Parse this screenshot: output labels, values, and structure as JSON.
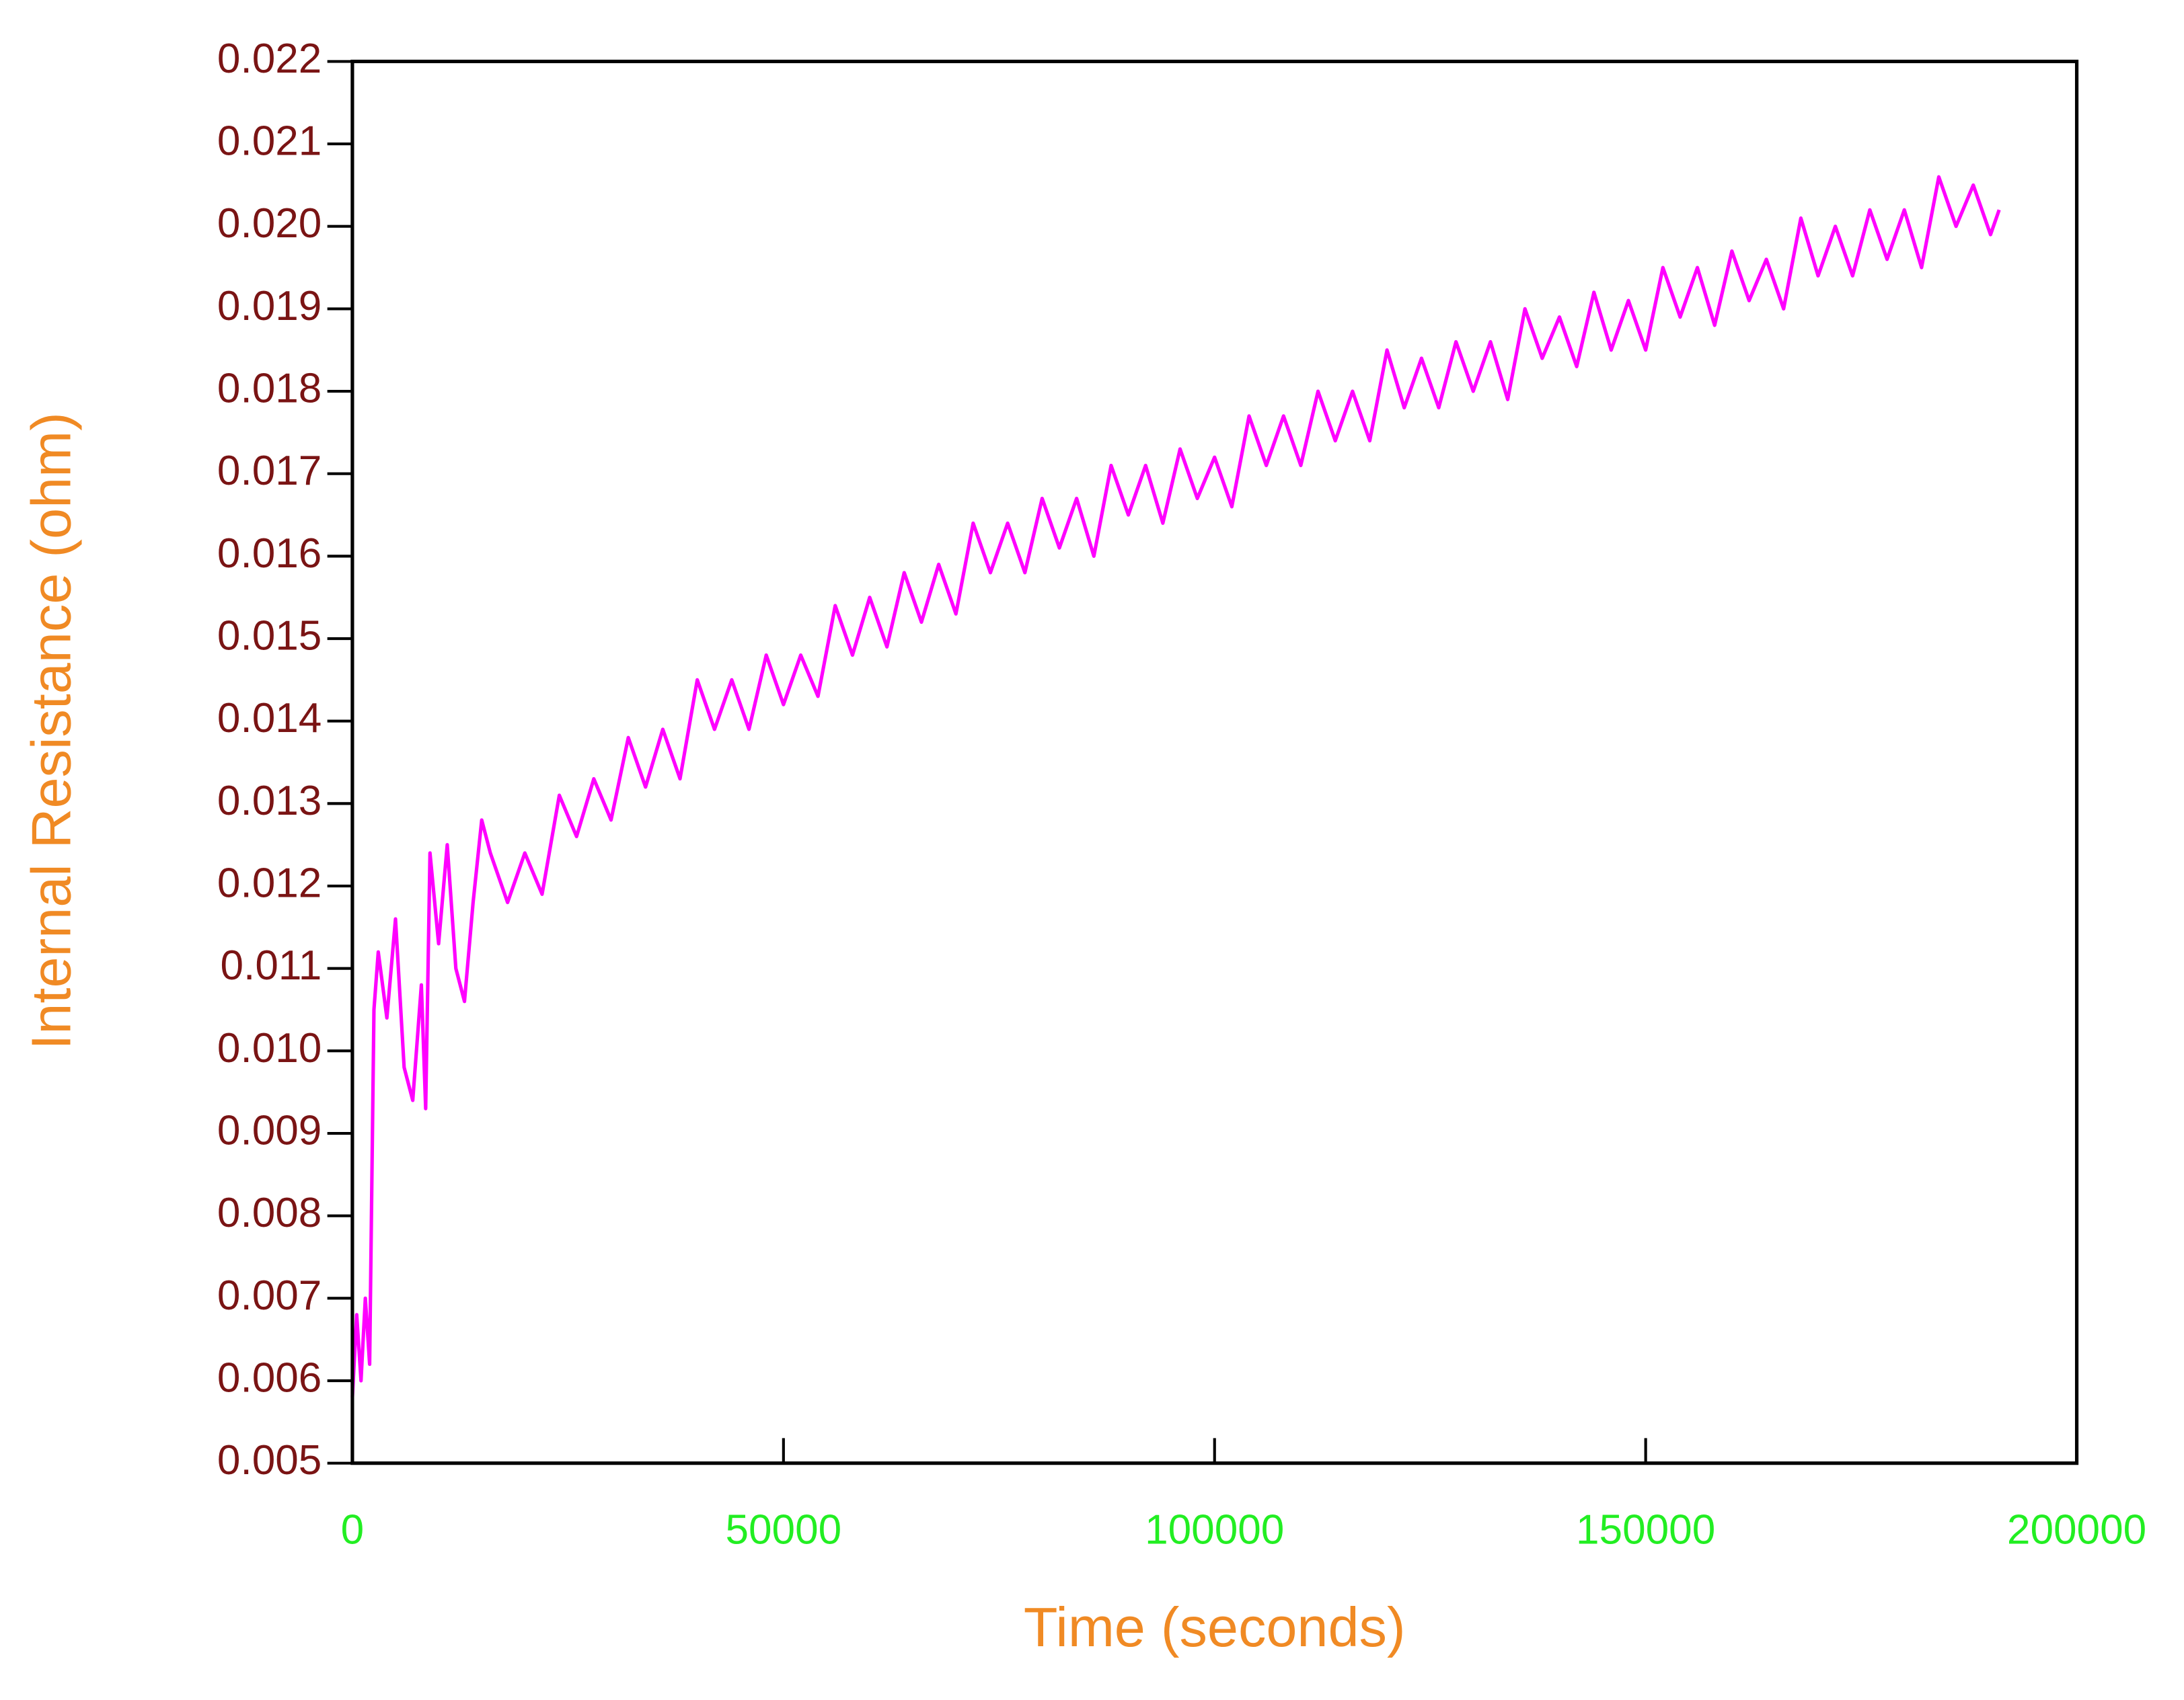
{
  "chart_data": {
    "type": "line",
    "xlabel": "Time (seconds)",
    "ylabel": "Internal Resistance (ohm)",
    "x": [
      0,
      500,
      1000,
      1500,
      2000,
      2500,
      3000,
      4000,
      5000,
      6000,
      7000,
      8000,
      8500,
      9000,
      10000,
      11000,
      12000,
      13000,
      14000,
      15000,
      16000,
      18000,
      20000,
      22000,
      24000,
      26000,
      28000,
      30000,
      32000,
      34000,
      36000,
      38000,
      40000,
      42000,
      44000,
      46000,
      48000,
      50000,
      52000,
      54000,
      56000,
      58000,
      60000,
      62000,
      64000,
      66000,
      68000,
      70000,
      72000,
      74000,
      76000,
      78000,
      80000,
      82000,
      84000,
      86000,
      88000,
      90000,
      92000,
      94000,
      96000,
      98000,
      100000,
      102000,
      104000,
      106000,
      108000,
      110000,
      112000,
      114000,
      116000,
      118000,
      120000,
      122000,
      124000,
      126000,
      128000,
      130000,
      132000,
      134000,
      136000,
      138000,
      140000,
      142000,
      144000,
      146000,
      148000,
      150000,
      152000,
      154000,
      156000,
      158000,
      160000,
      162000,
      164000,
      166000,
      168000,
      170000,
      172000,
      174000,
      176000,
      178000,
      180000,
      182000,
      184000,
      186000,
      188000,
      190000,
      191000
    ],
    "series": [
      {
        "color": "#ff00ff",
        "values": [
          0.0058,
          0.0068,
          0.006,
          0.007,
          0.0062,
          0.0105,
          0.0112,
          0.0104,
          0.0116,
          0.0098,
          0.0094,
          0.0108,
          0.0093,
          0.0124,
          0.0113,
          0.0125,
          0.011,
          0.0106,
          0.0118,
          0.0128,
          0.0124,
          0.0118,
          0.0124,
          0.0119,
          0.0131,
          0.0126,
          0.0133,
          0.0128,
          0.0138,
          0.0132,
          0.0139,
          0.0133,
          0.0145,
          0.0139,
          0.0145,
          0.0139,
          0.0148,
          0.0142,
          0.0148,
          0.0143,
          0.0154,
          0.0148,
          0.0155,
          0.0149,
          0.0158,
          0.0152,
          0.0159,
          0.0153,
          0.0164,
          0.0158,
          0.0164,
          0.0158,
          0.0167,
          0.0161,
          0.0167,
          0.016,
          0.0171,
          0.0165,
          0.0171,
          0.0164,
          0.0173,
          0.0167,
          0.0172,
          0.0166,
          0.0177,
          0.0171,
          0.0177,
          0.0171,
          0.018,
          0.0174,
          0.018,
          0.0174,
          0.0185,
          0.0178,
          0.0184,
          0.0178,
          0.0186,
          0.018,
          0.0186,
          0.0179,
          0.019,
          0.0184,
          0.0189,
          0.0183,
          0.0192,
          0.0185,
          0.0191,
          0.0185,
          0.0195,
          0.0189,
          0.0195,
          0.0188,
          0.0197,
          0.0191,
          0.0196,
          0.019,
          0.0201,
          0.0194,
          0.02,
          0.0194,
          0.0202,
          0.0196,
          0.0202,
          0.0195,
          0.0206,
          0.02,
          0.0205,
          0.0199,
          0.0202
        ]
      }
    ],
    "xlim": [
      0,
      200000
    ],
    "xticks": [
      0,
      50000,
      100000,
      150000,
      200000
    ],
    "ylim": [
      0.005,
      0.022
    ],
    "yticks": [
      0.005,
      0.006,
      0.007,
      0.008,
      0.009,
      {
        "value": 0.01,
        "label": "0.010"
      },
      0.011,
      0.012,
      0.013,
      0.014,
      0.015,
      0.016,
      0.017,
      0.018,
      0.019,
      {
        "value": 0.02,
        "label": "0.020"
      },
      0.021,
      0.022
    ],
    "ytick_color": "#7a1414",
    "xtick_color": "#22ee22",
    "label_color": "#f08a24",
    "grid": false
  }
}
